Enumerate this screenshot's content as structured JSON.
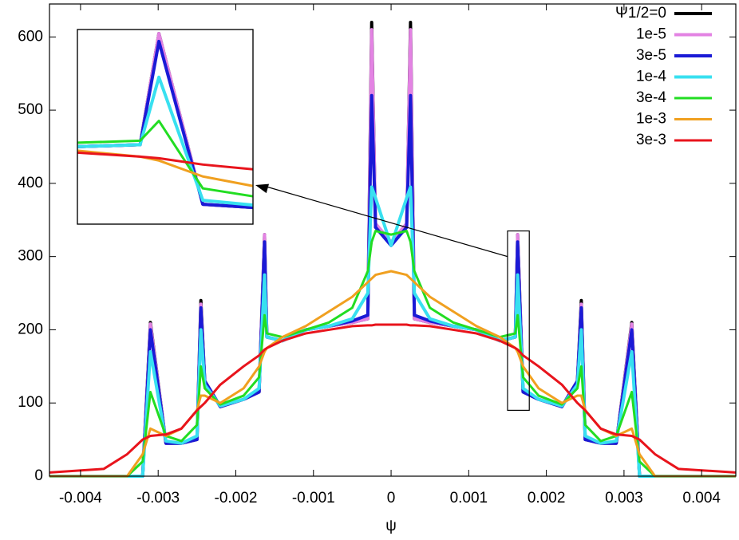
{
  "chart_data": {
    "type": "line",
    "xlabel": "ψ",
    "x": [
      -0.0044,
      -0.0037,
      -0.0034,
      -0.0032,
      -0.0031,
      -0.0029,
      -0.0027,
      -0.0025,
      -0.00245,
      -0.0024,
      -0.0022,
      -0.0019,
      -0.0017,
      -0.00163,
      -0.0016,
      -0.0014,
      -0.0011,
      -0.0008,
      -0.0005,
      -0.0003,
      -0.00025,
      -0.0002,
      0,
      0.0002,
      0.00025,
      0.0003,
      0.0005,
      0.0008,
      0.0011,
      0.0014,
      0.0016,
      0.00163,
      0.0017,
      0.0019,
      0.0022,
      0.0024,
      0.00245,
      0.0025,
      0.0027,
      0.0029,
      0.0031,
      0.0032,
      0.0034,
      0.0037,
      0.00444
    ],
    "series": [
      {
        "name": "Ψ1/2=0",
        "color": "#000000",
        "values": [
          0,
          0,
          0,
          0,
          210,
          45,
          45,
          50,
          240,
          130,
          95,
          105,
          115,
          330,
          190,
          185,
          200,
          205,
          210,
          215,
          620,
          340,
          320,
          340,
          620,
          215,
          210,
          205,
          200,
          185,
          190,
          330,
          115,
          105,
          95,
          130,
          240,
          50,
          45,
          45,
          210,
          0,
          0,
          0,
          0
        ]
      },
      {
        "name": "1e-5",
        "color": "#e383e3",
        "values": [
          0,
          0,
          0,
          0,
          208,
          45,
          45,
          50,
          235,
          130,
          95,
          105,
          115,
          330,
          190,
          185,
          200,
          205,
          210,
          215,
          610,
          345,
          320,
          345,
          610,
          215,
          210,
          205,
          200,
          185,
          190,
          330,
          115,
          105,
          95,
          130,
          235,
          50,
          45,
          45,
          208,
          0,
          0,
          0,
          0
        ]
      },
      {
        "name": "3e-5",
        "color": "#1a1ad6",
        "values": [
          0,
          0,
          0,
          0,
          200,
          45,
          45,
          50,
          230,
          130,
          95,
          105,
          115,
          320,
          190,
          185,
          200,
          205,
          212,
          220,
          520,
          340,
          315,
          340,
          520,
          220,
          212,
          205,
          200,
          185,
          190,
          320,
          115,
          105,
          95,
          130,
          230,
          50,
          45,
          45,
          200,
          0,
          0,
          0,
          0
        ]
      },
      {
        "name": "1e-4",
        "color": "#38e0f0",
        "values": [
          0,
          0,
          0,
          0,
          170,
          48,
          45,
          55,
          200,
          125,
          96,
          105,
          120,
          275,
          190,
          185,
          200,
          205,
          215,
          250,
          395,
          380,
          315,
          380,
          395,
          250,
          215,
          205,
          200,
          185,
          190,
          275,
          120,
          105,
          96,
          125,
          200,
          55,
          45,
          48,
          170,
          0,
          0,
          0,
          0
        ]
      },
      {
        "name": "3e-4",
        "color": "#22dd22",
        "values": [
          0,
          0,
          0,
          20,
          115,
          55,
          48,
          70,
          150,
          120,
          98,
          110,
          135,
          220,
          195,
          190,
          200,
          210,
          230,
          280,
          320,
          335,
          330,
          335,
          320,
          280,
          230,
          210,
          200,
          190,
          195,
          220,
          135,
          110,
          98,
          120,
          150,
          70,
          48,
          55,
          115,
          20,
          0,
          0,
          0
        ]
      },
      {
        "name": "1e-3",
        "color": "#f0a020",
        "values": [
          0,
          0,
          0,
          30,
          65,
          55,
          65,
          90,
          110,
          110,
          100,
          120,
          150,
          170,
          175,
          190,
          205,
          225,
          245,
          265,
          270,
          275,
          280,
          275,
          270,
          265,
          245,
          225,
          205,
          190,
          175,
          170,
          150,
          120,
          100,
          110,
          110,
          90,
          65,
          55,
          65,
          30,
          0,
          0,
          0
        ]
      },
      {
        "name": "3e-3",
        "color": "#e8141c",
        "values": [
          5,
          10,
          30,
          50,
          55,
          57,
          65,
          90,
          95,
          100,
          125,
          150,
          165,
          173,
          175,
          185,
          195,
          200,
          205,
          206,
          206,
          207,
          207,
          207,
          206,
          206,
          205,
          200,
          195,
          185,
          175,
          173,
          165,
          150,
          125,
          100,
          95,
          90,
          65,
          57,
          55,
          50,
          30,
          10,
          5
        ]
      }
    ],
    "xlim": [
      -0.0044,
      0.00444
    ],
    "ylim": [
      0,
      645
    ],
    "xticks": [
      -0.004,
      -0.003,
      -0.002,
      -0.001,
      0,
      0.001,
      0.002,
      0.003,
      0.004
    ],
    "yticks": [
      0,
      100,
      200,
      300,
      400,
      500,
      600
    ],
    "legend": "upper right",
    "inset": {
      "xlim": [
        0.0015,
        0.00178
      ],
      "ylim": [
        90,
        335
      ]
    }
  }
}
